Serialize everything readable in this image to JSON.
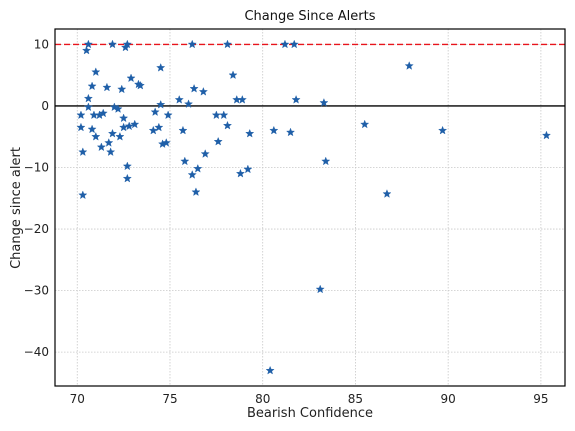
{
  "chart_data": {
    "type": "scatter",
    "title": "Change Since Alerts",
    "xlabel": "Bearish Confidence",
    "ylabel": "Change since alert",
    "xlim": [
      68.8,
      96.3
    ],
    "ylim": [
      -45.5,
      12.5
    ],
    "xticks": [
      70,
      75,
      80,
      85,
      90,
      95
    ],
    "yticks": [
      -40,
      -30,
      -20,
      -10,
      0,
      10
    ],
    "xtick_labels": [
      "70",
      "75",
      "80",
      "85",
      "90",
      "95"
    ],
    "ytick_labels": [
      "−40",
      "−30",
      "−20",
      "−10",
      "0",
      "10"
    ],
    "grid": true,
    "marker": "star",
    "marker_color": "#1f5fa8",
    "reference_lines": [
      {
        "axis": "y",
        "value": 10,
        "style": "dashed",
        "color": "#e8141c"
      },
      {
        "axis": "y",
        "value": 0,
        "style": "solid",
        "color": "#000000"
      }
    ],
    "points": [
      {
        "x": 70.2,
        "y": -3.5
      },
      {
        "x": 70.2,
        "y": -1.5
      },
      {
        "x": 70.3,
        "y": -7.5
      },
      {
        "x": 70.3,
        "y": -14.5
      },
      {
        "x": 70.5,
        "y": 9.0
      },
      {
        "x": 70.6,
        "y": 10.0
      },
      {
        "x": 70.6,
        "y": 1.2
      },
      {
        "x": 70.6,
        "y": -0.2
      },
      {
        "x": 70.8,
        "y": 3.2
      },
      {
        "x": 70.8,
        "y": -3.8
      },
      {
        "x": 70.9,
        "y": -1.5
      },
      {
        "x": 71.0,
        "y": 5.5
      },
      {
        "x": 71.0,
        "y": -5.0
      },
      {
        "x": 71.2,
        "y": -1.5
      },
      {
        "x": 71.3,
        "y": -6.7
      },
      {
        "x": 71.4,
        "y": -1.2
      },
      {
        "x": 71.6,
        "y": 3.0
      },
      {
        "x": 71.7,
        "y": -6.0
      },
      {
        "x": 71.8,
        "y": -7.5
      },
      {
        "x": 71.9,
        "y": 10.0
      },
      {
        "x": 71.9,
        "y": -4.5
      },
      {
        "x": 72.0,
        "y": -0.2
      },
      {
        "x": 72.2,
        "y": -0.5
      },
      {
        "x": 72.3,
        "y": -5.0
      },
      {
        "x": 72.4,
        "y": 2.7
      },
      {
        "x": 72.5,
        "y": -3.5
      },
      {
        "x": 72.5,
        "y": -2.0
      },
      {
        "x": 72.6,
        "y": 9.5
      },
      {
        "x": 72.7,
        "y": 10.0
      },
      {
        "x": 72.7,
        "y": -9.8
      },
      {
        "x": 72.7,
        "y": -11.8
      },
      {
        "x": 72.8,
        "y": -3.3
      },
      {
        "x": 72.9,
        "y": 4.5
      },
      {
        "x": 73.1,
        "y": -3.0
      },
      {
        "x": 73.3,
        "y": 3.5
      },
      {
        "x": 73.4,
        "y": 3.3
      },
      {
        "x": 74.1,
        "y": -4.0
      },
      {
        "x": 74.2,
        "y": -1.0
      },
      {
        "x": 74.4,
        "y": -3.5
      },
      {
        "x": 74.5,
        "y": 6.2
      },
      {
        "x": 74.5,
        "y": 0.2
      },
      {
        "x": 74.6,
        "y": -6.2
      },
      {
        "x": 74.8,
        "y": -6.0
      },
      {
        "x": 74.9,
        "y": -1.5
      },
      {
        "x": 75.5,
        "y": 1.0
      },
      {
        "x": 75.7,
        "y": -4.0
      },
      {
        "x": 75.8,
        "y": -9.0
      },
      {
        "x": 76.0,
        "y": 0.3
      },
      {
        "x": 76.2,
        "y": 10.0
      },
      {
        "x": 76.2,
        "y": -11.2
      },
      {
        "x": 76.3,
        "y": 2.8
      },
      {
        "x": 76.4,
        "y": -14.0
      },
      {
        "x": 76.5,
        "y": -10.2
      },
      {
        "x": 76.8,
        "y": 2.3
      },
      {
        "x": 76.9,
        "y": -7.8
      },
      {
        "x": 77.5,
        "y": -1.5
      },
      {
        "x": 77.6,
        "y": -5.8
      },
      {
        "x": 77.9,
        "y": -1.5
      },
      {
        "x": 78.1,
        "y": 10.0
      },
      {
        "x": 78.1,
        "y": -3.2
      },
      {
        "x": 78.4,
        "y": 5.0
      },
      {
        "x": 78.6,
        "y": 1.0
      },
      {
        "x": 78.8,
        "y": -11.0
      },
      {
        "x": 78.9,
        "y": 1.0
      },
      {
        "x": 79.2,
        "y": -10.3
      },
      {
        "x": 79.3,
        "y": -4.5
      },
      {
        "x": 80.4,
        "y": -43.0
      },
      {
        "x": 80.6,
        "y": -4.0
      },
      {
        "x": 81.2,
        "y": 10.0
      },
      {
        "x": 81.5,
        "y": -4.3
      },
      {
        "x": 81.7,
        "y": 10.0
      },
      {
        "x": 81.8,
        "y": 1.0
      },
      {
        "x": 83.1,
        "y": -29.8
      },
      {
        "x": 83.3,
        "y": 0.5
      },
      {
        "x": 83.4,
        "y": -9.0
      },
      {
        "x": 85.5,
        "y": -3.0
      },
      {
        "x": 86.7,
        "y": -14.3
      },
      {
        "x": 87.9,
        "y": 6.5
      },
      {
        "x": 89.7,
        "y": -4.0
      },
      {
        "x": 95.3,
        "y": -4.8
      }
    ]
  }
}
